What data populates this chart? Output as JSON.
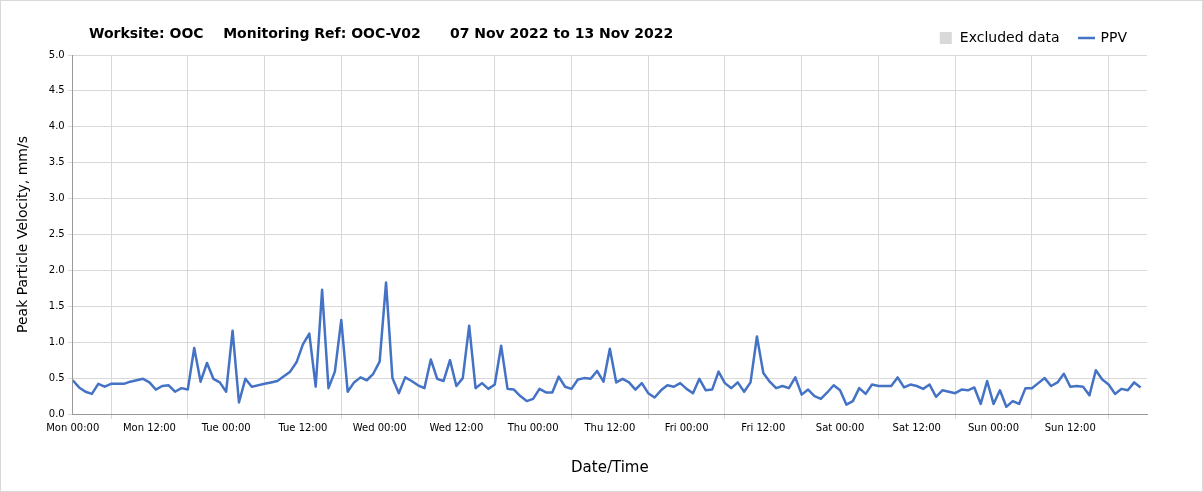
{
  "chart_data": {
    "type": "line",
    "title": "Worksite: OOC    Monitoring Ref: OOC-V02      07 Nov 2022 to 13 Nov 2022",
    "xlabel": "Date/Time",
    "ylabel": "Peak Particle Velocity, mm/s",
    "xlim": [
      "2022-11-07T00:00",
      "2022-11-14T00:00"
    ],
    "xticks": [
      {
        "value": "2022-11-07T00:00",
        "label": "Mon 00:00"
      },
      {
        "value": "2022-11-07T12:00",
        "label": "Mon 12:00"
      },
      {
        "value": "2022-11-08T00:00",
        "label": "Tue 00:00"
      },
      {
        "value": "2022-11-08T12:00",
        "label": "Tue 12:00"
      },
      {
        "value": "2022-11-09T00:00",
        "label": "Wed 00:00"
      },
      {
        "value": "2022-11-09T12:00",
        "label": "Wed 12:00"
      },
      {
        "value": "2022-11-10T00:00",
        "label": "Thu 00:00"
      },
      {
        "value": "2022-11-10T12:00",
        "label": "Thu 12:00"
      },
      {
        "value": "2022-11-11T00:00",
        "label": "Fri 00:00"
      },
      {
        "value": "2022-11-11T12:00",
        "label": "Fri 12:00"
      },
      {
        "value": "2022-11-12T00:00",
        "label": "Sat 00:00"
      },
      {
        "value": "2022-11-12T12:00",
        "label": "Sat 12:00"
      },
      {
        "value": "2022-11-13T00:00",
        "label": "Sun 00:00"
      },
      {
        "value": "2022-11-13T12:00",
        "label": "Sun 12:00"
      }
    ],
    "ylim": [
      0,
      5
    ],
    "yticks": [
      {
        "value": 0,
        "label": "0.0"
      },
      {
        "value": 0.5,
        "label": "0.5"
      },
      {
        "value": 1,
        "label": "1.0"
      },
      {
        "value": 1.5,
        "label": "1.5"
      },
      {
        "value": 2,
        "label": "2.0"
      },
      {
        "value": 2.5,
        "label": "2.5"
      },
      {
        "value": 3,
        "label": "3.0"
      },
      {
        "value": 3.5,
        "label": "3.5"
      },
      {
        "value": 4,
        "label": "4.0"
      },
      {
        "value": 4.5,
        "label": "4.5"
      },
      {
        "value": 5,
        "label": "5.0"
      }
    ],
    "grid": true,
    "legend": "top right",
    "marker": "none",
    "line_style": "solid",
    "series": [
      {
        "name": "Excluded data",
        "type": "bar",
        "color": "#d9d9d9"
      },
      {
        "name": "PPV",
        "color": "#4472c4",
        "x": [
          "2022-11-07T00:00",
          "2022-11-07T01:00",
          "2022-11-07T02:00",
          "2022-11-07T03:00",
          "2022-11-07T04:00",
          "2022-11-07T05:00",
          "2022-11-07T06:00",
          "2022-11-07T08:00",
          "2022-11-07T09:00",
          "2022-11-07T10:00",
          "2022-11-07T11:00",
          "2022-11-07T12:00",
          "2022-11-07T13:00",
          "2022-11-07T14:00",
          "2022-11-07T15:00",
          "2022-11-07T16:00",
          "2022-11-07T17:00",
          "2022-11-07T18:00",
          "2022-11-07T19:00",
          "2022-11-07T20:00",
          "2022-11-07T21:00",
          "2022-11-07T22:00",
          "2022-11-07T23:00",
          "2022-11-08T00:00",
          "2022-11-08T01:00",
          "2022-11-08T02:00",
          "2022-11-08T03:00",
          "2022-11-08T04:00",
          "2022-11-08T06:00",
          "2022-11-08T07:00",
          "2022-11-08T08:00",
          "2022-11-08T10:00",
          "2022-11-08T11:00",
          "2022-11-08T12:00",
          "2022-11-08T13:00",
          "2022-11-08T14:00",
          "2022-11-08T15:00",
          "2022-11-08T16:00",
          "2022-11-08T17:00",
          "2022-11-08T18:00",
          "2022-11-08T19:00",
          "2022-11-08T20:00",
          "2022-11-08T21:00",
          "2022-11-08T22:00",
          "2022-11-08T23:00",
          "2022-11-09T00:00",
          "2022-11-09T01:00",
          "2022-11-09T02:00",
          "2022-11-09T03:00",
          "2022-11-09T04:00",
          "2022-11-09T05:00",
          "2022-11-09T06:00",
          "2022-11-09T07:00",
          "2022-11-09T08:00",
          "2022-11-09T09:00",
          "2022-11-09T10:00",
          "2022-11-09T11:00",
          "2022-11-09T12:00",
          "2022-11-09T13:00",
          "2022-11-09T14:00",
          "2022-11-09T15:00",
          "2022-11-09T16:00",
          "2022-11-09T17:00",
          "2022-11-09T18:00",
          "2022-11-09T19:00",
          "2022-11-09T20:00",
          "2022-11-09T21:00",
          "2022-11-09T22:00",
          "2022-11-09T23:00",
          "2022-11-10T00:00",
          "2022-11-10T01:00",
          "2022-11-10T02:00",
          "2022-11-10T03:00",
          "2022-11-10T04:00",
          "2022-11-10T05:00",
          "2022-11-10T06:00",
          "2022-11-10T07:00",
          "2022-11-10T08:00",
          "2022-11-10T09:00",
          "2022-11-10T10:00",
          "2022-11-10T11:00",
          "2022-11-10T12:00",
          "2022-11-10T13:00",
          "2022-11-10T14:00",
          "2022-11-10T15:00",
          "2022-11-10T16:00",
          "2022-11-10T17:00",
          "2022-11-10T18:00",
          "2022-11-10T19:00",
          "2022-11-10T20:00",
          "2022-11-10T21:00",
          "2022-11-10T22:00",
          "2022-11-10T23:00",
          "2022-11-11T00:00",
          "2022-11-11T01:00",
          "2022-11-11T02:00",
          "2022-11-11T03:00",
          "2022-11-11T04:00",
          "2022-11-11T05:00",
          "2022-11-11T06:00",
          "2022-11-11T07:00",
          "2022-11-11T08:00",
          "2022-11-11T09:00",
          "2022-11-11T10:00",
          "2022-11-11T11:00",
          "2022-11-11T12:00",
          "2022-11-11T13:00",
          "2022-11-11T14:00",
          "2022-11-11T15:00",
          "2022-11-11T16:00",
          "2022-11-11T17:00",
          "2022-11-11T18:00",
          "2022-11-11T19:00",
          "2022-11-11T20:00",
          "2022-11-11T21:00",
          "2022-11-11T22:00",
          "2022-11-11T23:00",
          "2022-11-12T00:00",
          "2022-11-12T01:00",
          "2022-11-12T02:00",
          "2022-11-12T03:00",
          "2022-11-12T04:00",
          "2022-11-12T05:00",
          "2022-11-12T06:00",
          "2022-11-12T07:00",
          "2022-11-12T08:00",
          "2022-11-12T09:00",
          "2022-11-12T10:00",
          "2022-11-12T11:00",
          "2022-11-12T12:00",
          "2022-11-12T13:00",
          "2022-11-12T14:00",
          "2022-11-12T15:00",
          "2022-11-12T16:00",
          "2022-11-12T18:00",
          "2022-11-12T19:00",
          "2022-11-12T20:00",
          "2022-11-12T21:00",
          "2022-11-12T22:00",
          "2022-11-12T23:00",
          "2022-11-13T00:00",
          "2022-11-13T01:00",
          "2022-11-13T02:00",
          "2022-11-13T03:00",
          "2022-11-13T04:00",
          "2022-11-13T05:00",
          "2022-11-13T06:00",
          "2022-11-13T07:00",
          "2022-11-13T08:00",
          "2022-11-13T09:00",
          "2022-11-13T10:00",
          "2022-11-13T11:00",
          "2022-11-13T12:00",
          "2022-11-13T13:00",
          "2022-11-13T14:00",
          "2022-11-13T15:00",
          "2022-11-13T16:00",
          "2022-11-13T17:00",
          "2022-11-13T18:00",
          "2022-11-13T19:00",
          "2022-11-13T20:00",
          "2022-11-13T21:00",
          "2022-11-13T22:00",
          "2022-11-13T23:00"
        ],
        "values": [
          0.47,
          0.37,
          0.31,
          0.28,
          0.42,
          0.38,
          0.42,
          0.42,
          0.45,
          0.47,
          0.49,
          0.44,
          0.34,
          0.39,
          0.4,
          0.31,
          0.36,
          0.34,
          0.92,
          0.45,
          0.71,
          0.49,
          0.44,
          0.31,
          1.16,
          0.16,
          0.49,
          0.38,
          0.42,
          0.44,
          0.46,
          0.59,
          0.72,
          0.97,
          1.12,
          0.38,
          1.73,
          0.36,
          0.59,
          1.31,
          0.31,
          0.44,
          0.51,
          0.47,
          0.56,
          0.73,
          1.83,
          0.5,
          0.29,
          0.51,
          0.46,
          0.4,
          0.36,
          0.76,
          0.49,
          0.46,
          0.75,
          0.39,
          0.5,
          1.23,
          0.36,
          0.43,
          0.35,
          0.41,
          0.95,
          0.35,
          0.34,
          0.25,
          0.18,
          0.21,
          0.35,
          0.3,
          0.3,
          0.52,
          0.38,
          0.35,
          0.48,
          0.5,
          0.49,
          0.6,
          0.45,
          0.91,
          0.44,
          0.49,
          0.44,
          0.34,
          0.43,
          0.29,
          0.23,
          0.33,
          0.4,
          0.38,
          0.43,
          0.35,
          0.29,
          0.49,
          0.33,
          0.34,
          0.59,
          0.43,
          0.36,
          0.44,
          0.31,
          0.44,
          1.08,
          0.57,
          0.45,
          0.36,
          0.39,
          0.36,
          0.51,
          0.27,
          0.34,
          0.25,
          0.21,
          0.3,
          0.4,
          0.33,
          0.13,
          0.18,
          0.36,
          0.28,
          0.41,
          0.39,
          0.39,
          0.39,
          0.51,
          0.37,
          0.41,
          0.39,
          0.35,
          0.41,
          0.24,
          0.33,
          0.29,
          0.34,
          0.33,
          0.37,
          0.14,
          0.46,
          0.14,
          0.33,
          0.1,
          0.18,
          0.14,
          0.36,
          0.36,
          0.43,
          0.5,
          0.39,
          0.44,
          0.56,
          0.38,
          0.39,
          0.38,
          0.26,
          0.61,
          0.48,
          0.41,
          0.28,
          0.35,
          0.33,
          0.44,
          0.37
        ]
      }
    ]
  }
}
